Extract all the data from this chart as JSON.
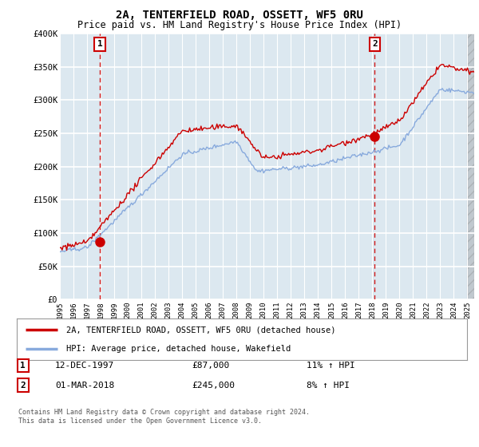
{
  "title": "2A, TENTERFIELD ROAD, OSSETT, WF5 0RU",
  "subtitle": "Price paid vs. HM Land Registry's House Price Index (HPI)",
  "ylim": [
    0,
    400000
  ],
  "yticks": [
    0,
    50000,
    100000,
    150000,
    200000,
    250000,
    300000,
    350000,
    400000
  ],
  "ytick_labels": [
    "£0",
    "£50K",
    "£100K",
    "£150K",
    "£200K",
    "£250K",
    "£300K",
    "£350K",
    "£400K"
  ],
  "xlim_start": 1995.0,
  "xlim_end": 2025.5,
  "sale1_x": 1997.95,
  "sale1_y": 87000,
  "sale1_label": "1",
  "sale1_date": "12-DEC-1997",
  "sale1_price": "£87,000",
  "sale1_hpi": "11% ↑ HPI",
  "sale2_x": 2018.17,
  "sale2_y": 245000,
  "sale2_label": "2",
  "sale2_date": "01-MAR-2018",
  "sale2_price": "£245,000",
  "sale2_hpi": "8% ↑ HPI",
  "line_color_property": "#cc0000",
  "line_color_hpi": "#88aadd",
  "marker_color": "#cc0000",
  "dashed_line_color": "#cc0000",
  "legend_label_property": "2A, TENTERFIELD ROAD, OSSETT, WF5 0RU (detached house)",
  "legend_label_hpi": "HPI: Average price, detached house, Wakefield",
  "footer": "Contains HM Land Registry data © Crown copyright and database right 2024.\nThis data is licensed under the Open Government Licence v3.0.",
  "bg_color": "#ffffff",
  "plot_bg_color": "#dce8f0",
  "grid_color": "#ffffff"
}
